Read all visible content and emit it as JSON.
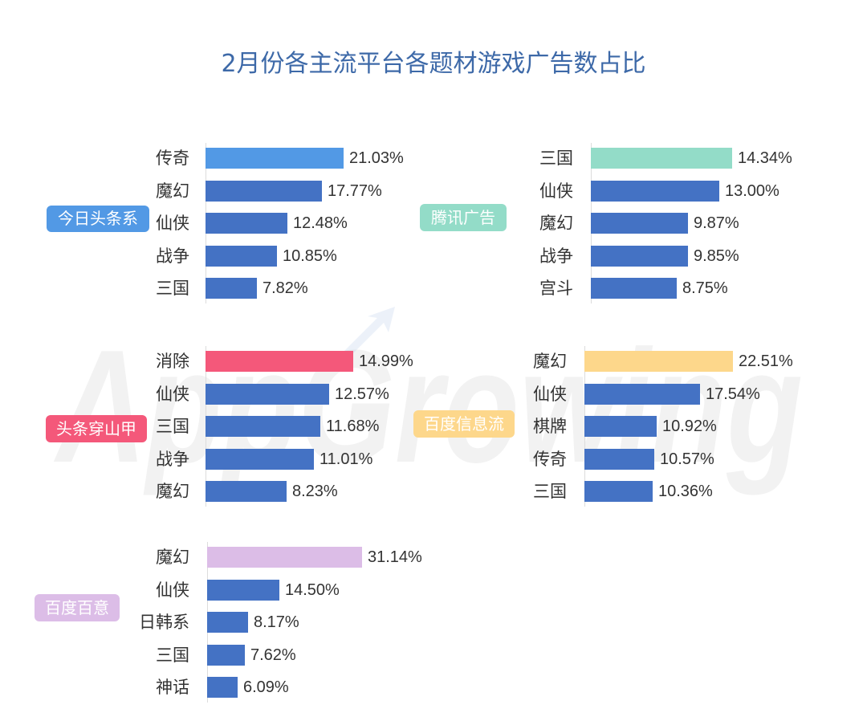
{
  "title": "2月份各主流平台各题材游戏广告数占比",
  "watermark": "AppGrowing",
  "colors": {
    "title": "#3d69a8",
    "bar": "#4472c4",
    "text": "#333333",
    "axis": "#dcdcdc",
    "badge_text": "#ffffff"
  },
  "chart_data": [
    {
      "type": "bar",
      "orientation": "horizontal",
      "title": "今日头条系",
      "accent_color": "#5299e5",
      "categories": [
        "传奇",
        "魔幻",
        "仙侠",
        "战争",
        "三国"
      ],
      "values": [
        21.03,
        17.77,
        12.48,
        10.85,
        7.82
      ],
      "labels": [
        "21.03%",
        "17.77%",
        "12.48%",
        "10.85%",
        "7.82%"
      ]
    },
    {
      "type": "bar",
      "orientation": "horizontal",
      "title": "腾讯广告",
      "accent_color": "#93dcc8",
      "categories": [
        "三国",
        "仙侠",
        "魔幻",
        "战争",
        "宫斗"
      ],
      "values": [
        14.34,
        13.0,
        9.87,
        9.85,
        8.75
      ],
      "labels": [
        "14.34%",
        "13.00%",
        "9.87%",
        "9.85%",
        "8.75%"
      ]
    },
    {
      "type": "bar",
      "orientation": "horizontal",
      "title": "头条穿山甲",
      "accent_color": "#f4587a",
      "categories": [
        "消除",
        "仙侠",
        "三国",
        "战争",
        "魔幻"
      ],
      "values": [
        14.99,
        12.57,
        11.68,
        11.01,
        8.23
      ],
      "labels": [
        "14.99%",
        "12.57%",
        "11.68%",
        "11.01%",
        "8.23%"
      ]
    },
    {
      "type": "bar",
      "orientation": "horizontal",
      "title": "百度信息流",
      "accent_color": "#fdd78b",
      "categories": [
        "魔幻",
        "仙侠",
        "棋牌",
        "传奇",
        "三国"
      ],
      "values": [
        22.51,
        17.54,
        10.92,
        10.57,
        10.36
      ],
      "labels": [
        "22.51%",
        "17.54%",
        "10.92%",
        "10.57%",
        "10.36%"
      ]
    },
    {
      "type": "bar",
      "orientation": "horizontal",
      "title": "百度百意",
      "accent_color": "#dcbde7",
      "categories": [
        "魔幻",
        "仙侠",
        "日韩系",
        "三国",
        "神话"
      ],
      "values": [
        31.14,
        14.5,
        8.17,
        7.62,
        6.09
      ],
      "labels": [
        "31.14%",
        "14.50%",
        "8.17%",
        "7.62%",
        "6.09%"
      ]
    }
  ]
}
